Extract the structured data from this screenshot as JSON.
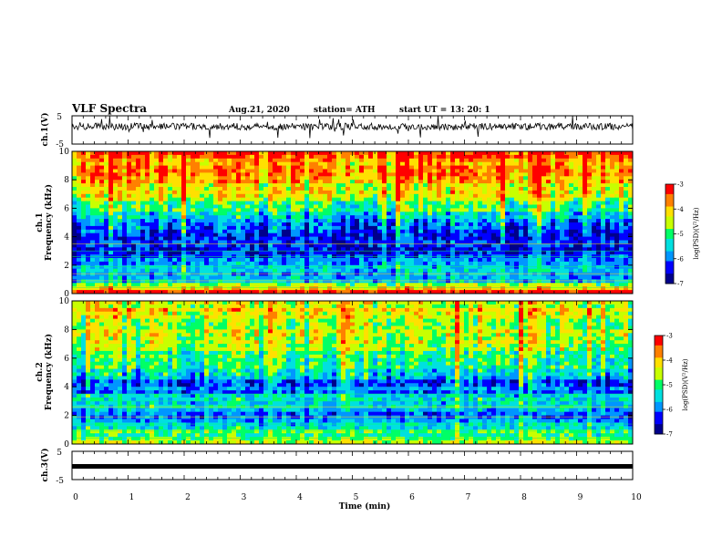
{
  "header": {
    "title": "VLF Spectra",
    "date": "Aug.21, 2020",
    "station": "station= ATH",
    "start": "start  UT =   13: 20: 1"
  },
  "colors": {
    "spectrum": [
      "#00008b",
      "#0000ff",
      "#0096ff",
      "#00e0e0",
      "#00ff66",
      "#c8ff00",
      "#ffe000",
      "#ff8000",
      "#ff0000",
      "#ffffff"
    ],
    "waveform": "#000000"
  },
  "chart_data": [
    {
      "type": "line",
      "name": "waveform-ch1",
      "ylabel": "ch.1(V)",
      "ylim": [
        -5,
        5
      ],
      "yticks": [
        "5",
        "-5"
      ],
      "xlim": [
        0,
        10
      ],
      "note": "noisy VLF waveform centered slightly above 0 V"
    },
    {
      "type": "heatmap",
      "name": "spectrogram-ch1",
      "ylabel": "ch.1\nFrequency (kHz)",
      "ylim": [
        0,
        10
      ],
      "yticks": [
        "0",
        "2",
        "4",
        "6",
        "8",
        "10"
      ],
      "xlim": [
        0,
        10
      ],
      "colorbar": {
        "label": "log(PSD)(V²/Hz)",
        "ticks": [
          "-3",
          "-4",
          "-5",
          "-6",
          "-7"
        ],
        "range": [
          -7,
          -3
        ]
      },
      "profile": [
        {
          "f": 0,
          "v": -3.2
        },
        {
          "f": 0.5,
          "v": -4.3
        },
        {
          "f": 1.0,
          "v": -5.9
        },
        {
          "f": 2.0,
          "v": -5.8
        },
        {
          "f": 3.0,
          "v": -6.4
        },
        {
          "f": 4.0,
          "v": -6.5
        },
        {
          "f": 5.0,
          "v": -5.8
        },
        {
          "f": 6.0,
          "v": -5.0
        },
        {
          "f": 7.0,
          "v": -4.4
        },
        {
          "f": 8.0,
          "v": -4.0
        },
        {
          "f": 9.0,
          "v": -3.8
        },
        {
          "f": 10.0,
          "v": -3.6
        }
      ]
    },
    {
      "type": "heatmap",
      "name": "spectrogram-ch2",
      "ylabel": "ch.2\nFrequency (kHz)",
      "ylim": [
        0,
        10
      ],
      "yticks": [
        "0",
        "2",
        "4",
        "6",
        "8",
        "10"
      ],
      "xlim": [
        0,
        10
      ],
      "colorbar": {
        "label": "log(PSD)(V²/Hz)",
        "ticks": [
          "-3",
          "-4",
          "-5",
          "-6",
          "-7"
        ],
        "range": [
          -7,
          -3
        ]
      },
      "profile": [
        {
          "f": 0,
          "v": -4.5
        },
        {
          "f": 0.5,
          "v": -5.0
        },
        {
          "f": 1.0,
          "v": -5.1
        },
        {
          "f": 2.0,
          "v": -6.0
        },
        {
          "f": 3.0,
          "v": -5.4
        },
        {
          "f": 4.0,
          "v": -6.2
        },
        {
          "f": 5.0,
          "v": -5.5
        },
        {
          "f": 6.0,
          "v": -5.0
        },
        {
          "f": 7.0,
          "v": -4.7
        },
        {
          "f": 8.0,
          "v": -4.6
        },
        {
          "f": 9.0,
          "v": -4.4
        },
        {
          "f": 10.0,
          "v": -4.3
        }
      ]
    },
    {
      "type": "line",
      "name": "waveform-ch3",
      "ylabel": "ch.3(V)",
      "ylim": [
        -5,
        5
      ],
      "yticks": [
        "5",
        "0",
        "-5"
      ],
      "xlim": [
        0,
        10
      ],
      "value": 0,
      "note": "flat thick line near 0 V"
    }
  ],
  "xaxis": {
    "label": "Time  (min)",
    "ticks": [
      "0",
      "1",
      "2",
      "3",
      "4",
      "5",
      "6",
      "7",
      "8",
      "9",
      "10"
    ]
  }
}
